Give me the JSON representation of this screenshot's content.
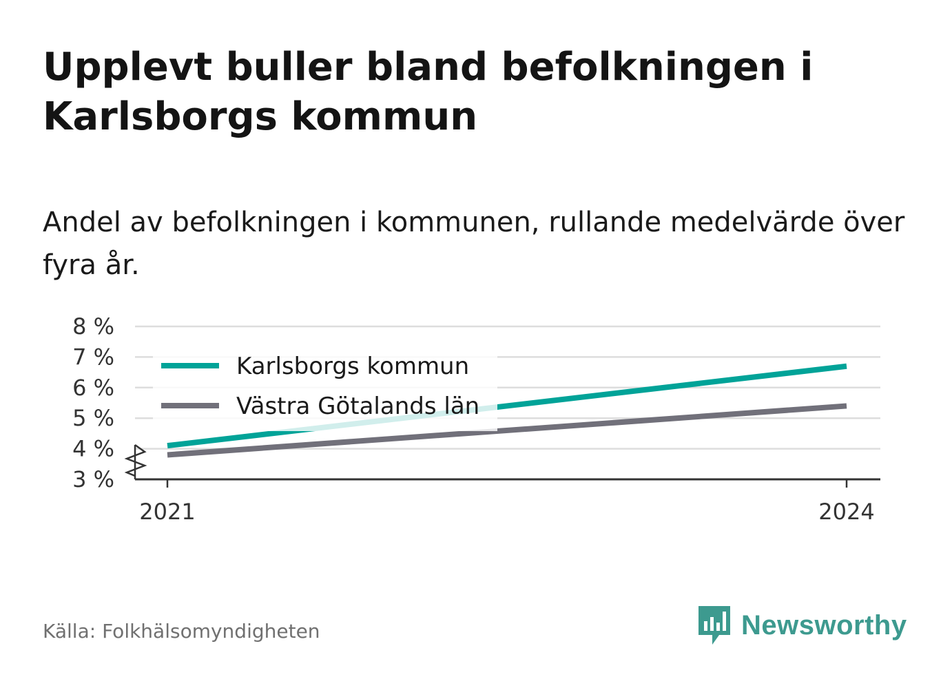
{
  "title": "Upplevt buller bland befolkningen i Karlsborgs kommun",
  "subtitle": "Andel av befolkningen i kommunen, rullande medelvärde över fyra år.",
  "source": "Källa: Folkhälsomyndigheten",
  "brand": {
    "name": "Newsworthy",
    "color": "#3d9a8f",
    "icon": "newsworthy-logo-icon"
  },
  "chart_data": {
    "type": "line",
    "x": [
      2021,
      2024
    ],
    "x_tick_labels": [
      "2021",
      "2024"
    ],
    "ylim": [
      3,
      8
    ],
    "y_ticks": [
      3,
      4,
      5,
      6,
      7,
      8
    ],
    "y_tick_labels": [
      "3 %",
      "4 %",
      "5 %",
      "6 %",
      "7 %",
      "8 %"
    ],
    "y_axis_break": true,
    "grid": true,
    "legend_position": "top-left",
    "series": [
      {
        "name": "Karlsborgs kommun",
        "color": "#00a398",
        "values": [
          4.1,
          6.7
        ]
      },
      {
        "name": "Västra Götalands län",
        "color": "#71707a",
        "values": [
          3.8,
          5.4
        ]
      }
    ]
  }
}
